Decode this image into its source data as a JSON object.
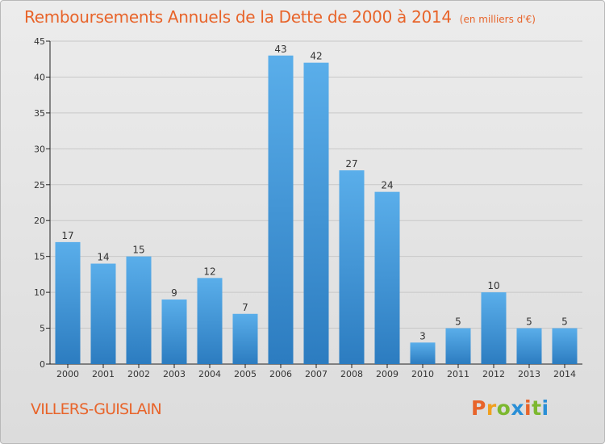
{
  "header": {
    "title": "Remboursements Annuels de la Dette de 2000 à 2014",
    "subtitle": "(en milliers d'€)"
  },
  "footer": {
    "commune": "VILLERS-GUISLAIN",
    "brand": "Proxiti"
  },
  "colors": {
    "title": "#e8642a",
    "bar_top": "#5aaeea",
    "bar_bottom": "#2c7cc0",
    "grid": "#c8c8c8",
    "axis": "#222222",
    "brand_letters": [
      "#e8642a",
      "#f0a020",
      "#7cb82f",
      "#2a8fd6",
      "#e8642a",
      "#7cb82f",
      "#2a8fd6"
    ]
  },
  "chart_data": {
    "type": "bar",
    "categories": [
      "2000",
      "2001",
      "2002",
      "2003",
      "2004",
      "2005",
      "2006",
      "2007",
      "2008",
      "2009",
      "2010",
      "2011",
      "2012",
      "2013",
      "2014"
    ],
    "values": [
      17,
      14,
      15,
      9,
      12,
      7,
      43,
      42,
      27,
      24,
      3,
      5,
      10,
      5,
      5
    ],
    "title": "Remboursements Annuels de la Dette de 2000 à 2014",
    "xlabel": "",
    "ylabel": "",
    "ylim": [
      0,
      45
    ],
    "yticks": [
      0,
      5,
      10,
      15,
      20,
      25,
      30,
      35,
      40,
      45
    ],
    "grid": true,
    "data_labels": true
  }
}
